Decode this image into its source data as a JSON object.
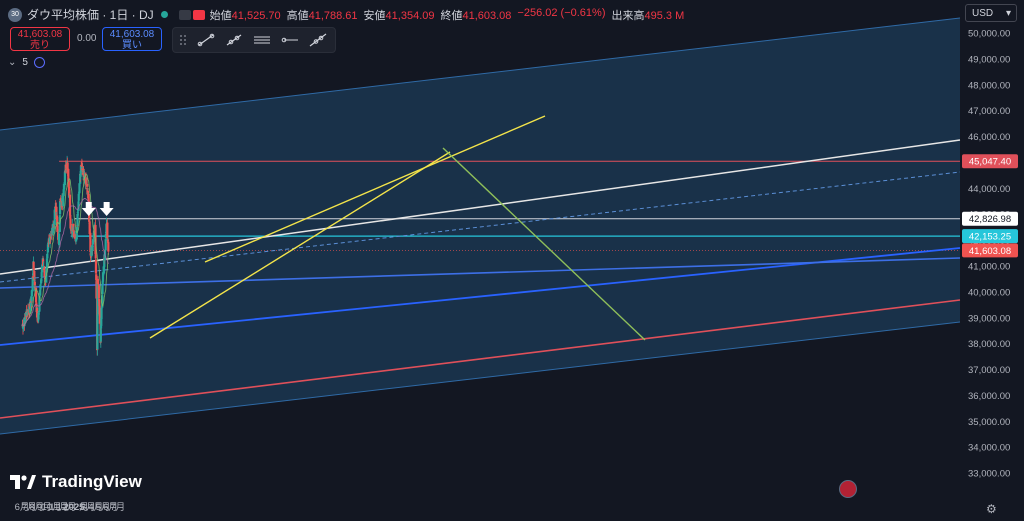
{
  "header": {
    "badge": "30",
    "title": "ダウ平均株価 · 1日 · DJ",
    "ohlc": [
      {
        "label": "始値",
        "value": "41,525.70"
      },
      {
        "label": "高値",
        "value": "41,788.61"
      },
      {
        "label": "安値",
        "value": "41,354.09"
      },
      {
        "label": "終値",
        "value": "41,603.08"
      },
      {
        "label": "",
        "value": "−256.02 (−0.61%)"
      },
      {
        "label": "出来高",
        "value": "495.3 M"
      }
    ]
  },
  "trade": {
    "sell_price": "41,603.08",
    "sell_label": "売り",
    "spread": "0.00",
    "buy_price": "41,603.08",
    "buy_label": "買い"
  },
  "indicators": {
    "count": "5"
  },
  "currency": "USD",
  "brand": "TradingView",
  "colors": {
    "background": "#131722",
    "up": "#26a69a",
    "down": "#ef5350",
    "channel_fill": "#1b3650",
    "channel_edge": "#2f6aa6",
    "white_trend": "#e6e6e6",
    "blue_trend": "#2962ff",
    "red_trend": "#e0505a",
    "yellow_channel": "#f3e44a",
    "green_line": "#8fbf5a"
  },
  "chart_data": {
    "type": "candlestick",
    "symbol": "DJ",
    "interval": "1D",
    "x_tick_labels": [
      "6月",
      "7月",
      "8月",
      "9月",
      "10月",
      "11月",
      "12月",
      "2025",
      "2月",
      "3月",
      "4月",
      "5月",
      "6月",
      "7月"
    ],
    "y_tick_labels": [
      "33,000.00",
      "34,000.00",
      "35,000.00",
      "36,000.00",
      "37,000.00",
      "38,000.00",
      "39,000.00",
      "40,000.00",
      "41,000.00",
      "42,000.00",
      "43,000.00",
      "44,000.00",
      "45,000.00",
      "46,000.00",
      "47,000.00",
      "48,000.00",
      "49,000.00",
      "50,000.00"
    ],
    "ylim": [
      32600,
      50400
    ],
    "price_labels": [
      {
        "value": 45047.4,
        "text": "45,047.40",
        "color": "#e0505a"
      },
      {
        "value": 42826.98,
        "text": "42,826.98",
        "color": "#ffffff"
      },
      {
        "value": 42153.25,
        "text": "42,153.25",
        "color": "#26c6da"
      },
      {
        "value": 41603.08,
        "text": "41,603.08",
        "color": "#ef5350"
      }
    ],
    "horizontal_levels": [
      45047.4,
      42826.98,
      42153.25
    ],
    "price_path": [
      [
        "2024-06-01",
        38700
      ],
      [
        "2024-06-10",
        38800
      ],
      [
        "2024-06-20",
        39200
      ],
      [
        "2024-07-01",
        39300
      ],
      [
        "2024-07-10",
        39700
      ],
      [
        "2024-07-18",
        41000
      ],
      [
        "2024-07-25",
        40200
      ],
      [
        "2024-08-05",
        38700
      ],
      [
        "2024-08-15",
        40200
      ],
      [
        "2024-08-25",
        41200
      ],
      [
        "2024-09-06",
        40400
      ],
      [
        "2024-09-15",
        41600
      ],
      [
        "2024-09-25",
        42200
      ],
      [
        "2024-10-05",
        42300
      ],
      [
        "2024-10-18",
        43300
      ],
      [
        "2024-10-31",
        41800
      ],
      [
        "2024-11-06",
        43700
      ],
      [
        "2024-11-15",
        43400
      ],
      [
        "2024-11-25",
        44700
      ],
      [
        "2024-12-04",
        45000
      ],
      [
        "2024-12-10",
        44300
      ],
      [
        "2024-12-19",
        42300
      ],
      [
        "2024-12-31",
        42500
      ],
      [
        "2025-01-10",
        41900
      ],
      [
        "2025-01-20",
        43500
      ],
      [
        "2025-01-30",
        44800
      ],
      [
        "2025-02-10",
        44500
      ],
      [
        "2025-02-20",
        44200
      ],
      [
        "2025-03-01",
        43800
      ],
      [
        "2025-03-11",
        41400
      ],
      [
        "2025-03-20",
        41900
      ],
      [
        "2025-03-28",
        42500
      ],
      [
        "2025-04-03",
        40500
      ],
      [
        "2025-04-07",
        37600
      ],
      [
        "2025-04-09",
        40600
      ],
      [
        "2025-04-15",
        39700
      ],
      [
        "2025-04-21",
        38200
      ],
      [
        "2025-05-01",
        40800
      ],
      [
        "2025-05-08",
        41400
      ],
      [
        "2025-05-13",
        42300
      ],
      [
        "2025-05-16",
        42650
      ],
      [
        "2025-05-21",
        41850
      ],
      [
        "2025-05-23",
        41603
      ]
    ]
  }
}
